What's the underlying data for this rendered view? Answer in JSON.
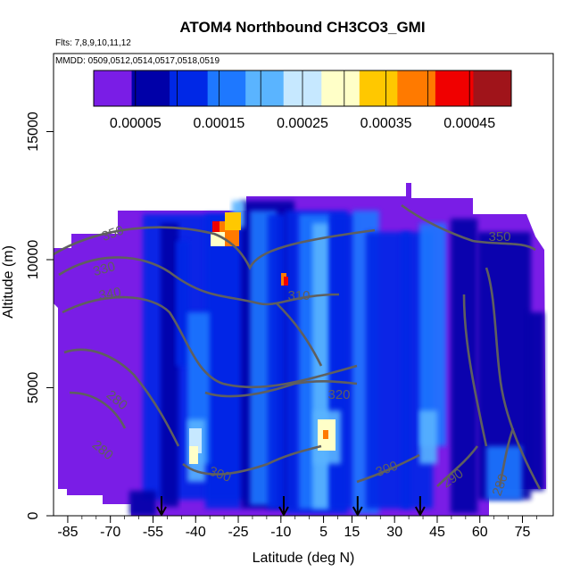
{
  "chart_data": {
    "type": "heatmap",
    "title": "ATOM4 Northbound CH3CO3_GMI",
    "subtitle_flights": "Flts: 7,8,9,10,11,12",
    "subtitle_dates": "MMDD: 0509,0512,0514,0517,0518,0519",
    "xlabel": "Latitude (deg N)",
    "ylabel": "Altitude (m)",
    "xlim": [
      -85,
      85
    ],
    "ylim": [
      0,
      18000
    ],
    "x_ticks": [
      -85,
      -70,
      -55,
      -40,
      -25,
      -10,
      5,
      15,
      30,
      45,
      60,
      75
    ],
    "y_ticks": [
      0,
      5000,
      10000,
      15000
    ],
    "colorbar": {
      "colors": [
        "#7a1de6",
        "#0000a8",
        "#0028e6",
        "#1e78ff",
        "#5ab4ff",
        "#c6e8ff",
        "#ffffc8",
        "#ffc800",
        "#ff7a00",
        "#f00000",
        "#a0141a"
      ],
      "tick_labels": [
        "0.00005",
        "0.00015",
        "0.00025",
        "0.00035",
        "0.00045"
      ],
      "range": [
        0,
        0.0005
      ]
    },
    "contour_labels": [
      "350",
      "330",
      "340",
      "310",
      "280",
      "280",
      "300",
      "320",
      "300",
      "290",
      "280",
      "350"
    ],
    "flight_arrows_lat": [
      -52,
      -9,
      17,
      39
    ],
    "colors": {
      "background_fill": "#7a1de6",
      "contour_line": "#5f5f5f"
    }
  }
}
